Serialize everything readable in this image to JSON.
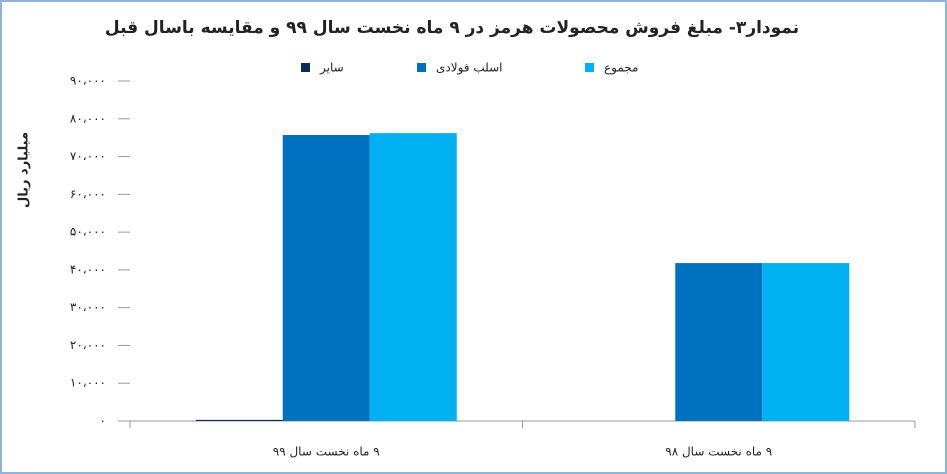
{
  "chart_data": {
    "type": "bar",
    "title": "نمودار۳- مبلغ فروش محصولات هرمز در ۹ ماه نخست سال ۹۹ و مقایسه باسال قبل",
    "y_label": "میلیارد ریال",
    "categories": [
      "۹ ماه نخست سال ۹۹",
      "۹ ماه نخست سال ۹۸"
    ],
    "series": [
      {
        "name": "سایر",
        "color": "#0d2b5e",
        "values": [
          300,
          0
        ]
      },
      {
        "name": "اسلب فولادی",
        "color": "#0070c0",
        "values": [
          75700,
          41800
        ]
      },
      {
        "name": "مجموع",
        "color": "#00b0f0",
        "values": [
          76200,
          41800
        ]
      }
    ],
    "ylim": [
      0,
      90000
    ],
    "yticks": [
      {
        "value": 0,
        "label": "۰"
      },
      {
        "value": 10000,
        "label": "۱۰،۰۰۰"
      },
      {
        "value": 20000,
        "label": "۲۰،۰۰۰"
      },
      {
        "value": 30000,
        "label": "۳۰،۰۰۰"
      },
      {
        "value": 40000,
        "label": "۴۰،۰۰۰"
      },
      {
        "value": 50000,
        "label": "۵۰،۰۰۰"
      },
      {
        "value": 60000,
        "label": "۶۰،۰۰۰"
      },
      {
        "value": 70000,
        "label": "۷۰،۰۰۰"
      },
      {
        "value": 80000,
        "label": "۸۰،۰۰۰"
      },
      {
        "value": 90000,
        "label": "۹۰،۰۰۰"
      }
    ],
    "grid": false
  }
}
